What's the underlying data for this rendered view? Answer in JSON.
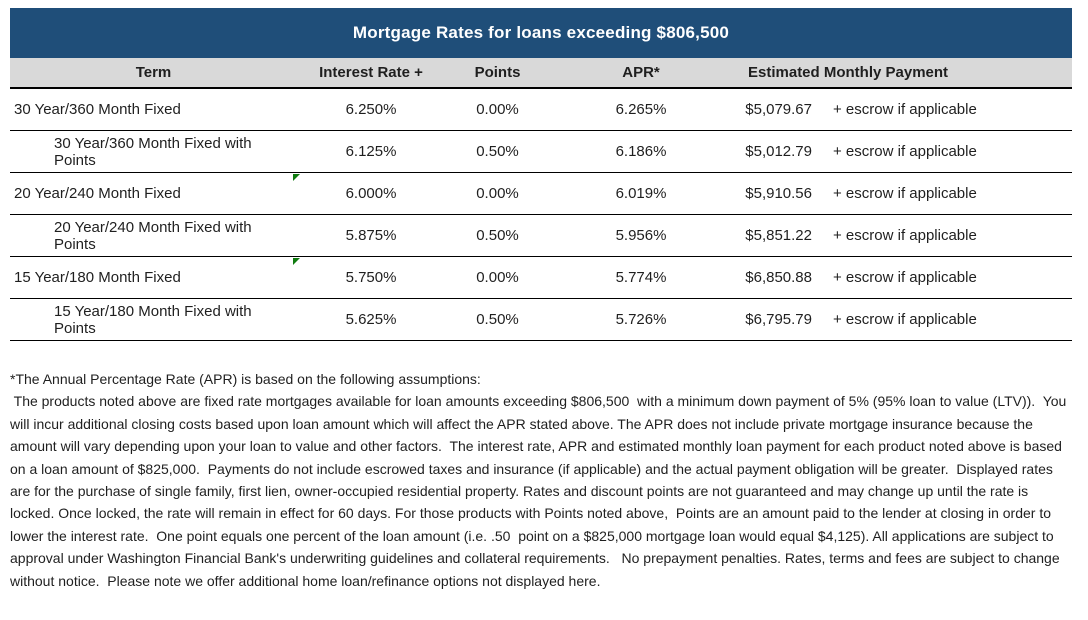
{
  "header": {
    "title": "Mortgage Rates for loans exceeding $806,500"
  },
  "columns": {
    "term": "Term",
    "rate": "Interest Rate +",
    "points": "Points",
    "apr": "APR*",
    "payment": "Estimated Monthly Payment"
  },
  "rows": [
    {
      "term": "30 Year/360 Month Fixed",
      "indented": false,
      "flag": false,
      "rate": "6.250%",
      "points": "0.00%",
      "apr": "6.265%",
      "payment": "$5,079.67",
      "escrow": "+ escrow if applicable"
    },
    {
      "term": "30 Year/360 Month Fixed with Points",
      "indented": true,
      "flag": false,
      "rate": "6.125%",
      "points": "0.50%",
      "apr": "6.186%",
      "payment": "$5,012.79",
      "escrow": "+ escrow if applicable"
    },
    {
      "term": "20 Year/240 Month Fixed",
      "indented": false,
      "flag": true,
      "rate": "6.000%",
      "points": "0.00%",
      "apr": "6.019%",
      "payment": "$5,910.56",
      "escrow": "+ escrow if applicable"
    },
    {
      "term": "20 Year/240 Month Fixed with Points",
      "indented": true,
      "flag": false,
      "rate": "5.875%",
      "points": "0.50%",
      "apr": "5.956%",
      "payment": "$5,851.22",
      "escrow": "+ escrow if applicable"
    },
    {
      "term": "15 Year/180 Month Fixed",
      "indented": false,
      "flag": true,
      "rate": "5.750%",
      "points": "0.00%",
      "apr": "5.774%",
      "payment": "$6,850.88",
      "escrow": "+ escrow if applicable"
    },
    {
      "term": "15 Year/180 Month Fixed with Points",
      "indented": true,
      "flag": false,
      "rate": "5.625%",
      "points": "0.50%",
      "apr": "5.726%",
      "payment": "$6,795.79",
      "escrow": "+ escrow if applicable"
    }
  ],
  "footnote": {
    "lines": [
      "*The Annual Percentage Rate (APR) is based on the following assumptions:",
      " The products noted above are fixed rate mortgages available for loan amounts exceeding $806,500  with a minimum down payment of 5% (95% loan to value (LTV)).  You",
      "will incur additional closing costs based upon loan amount which will affect the APR stated above. The APR does not include private mortgage insurance because the",
      "amount will vary depending upon your loan to value and other factors.  The interest rate, APR and estimated monthly loan payment for each product noted above is based",
      "on a loan amount of $825,000.  Payments do not include escrowed taxes and insurance (if applicable) and the actual payment obligation will be greater.  Displayed rates",
      "are for the purchase of single family, first lien, owner-occupied residential property. Rates and discount points are not guaranteed and may change up until the rate is",
      "locked. Once locked, the rate will remain in effect for 60 days. For those products with Points noted above,  Points are an amount paid to the lender at closing in order to",
      "lower the interest rate.  One point equals one percent of the loan amount (i.e. .50  point on a $825,000 mortgage loan would equal $4,125). All applications are subject to",
      "approval under Washington Financial Bank's underwriting guidelines and collateral requirements.   No prepayment penalties. Rates, terms and fees are subject to change",
      "without notice.  Please note we offer additional home loan/refinance options not displayed here."
    ]
  },
  "colors": {
    "title_bg": "#1F4E79",
    "title_text": "#FFFFFF",
    "header_bg": "#D9D9D9",
    "body_text": "#1F1F1F",
    "flag_green": "#107C10"
  }
}
